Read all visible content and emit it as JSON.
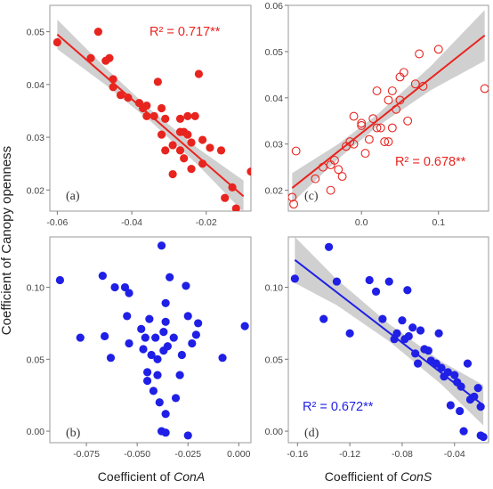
{
  "figure": {
    "ylabel": "Coefficient of Canopy openness",
    "xlabel_left_prefix": "Coefficient of ",
    "xlabel_left_italic": "ConA",
    "xlabel_right_prefix": "Coefficient of ",
    "xlabel_right_italic": "ConS"
  },
  "colors": {
    "red": "#e8241f",
    "blue": "#1f1fe6",
    "band": "#c8c8c8"
  },
  "chart_data": [
    {
      "id": "a",
      "type": "scatter",
      "panel_label": "(a)",
      "annotation": "R² = 0.717**",
      "marker": "filled",
      "color": "red",
      "xlim": [
        -0.062,
        -0.008
      ],
      "ylim": [
        0.016,
        0.055
      ],
      "xticks": [
        -0.06,
        -0.04,
        -0.02
      ],
      "xtick_labels": [
        "-0.06",
        "-0.04",
        "-0.02"
      ],
      "yticks": [
        0.02,
        0.03,
        0.04,
        0.05
      ],
      "ytick_labels": [
        "0.02",
        "0.03",
        "0.04",
        "0.05"
      ],
      "fit": {
        "x": [
          -0.06,
          -0.01
        ],
        "y": [
          0.0495,
          0.0188
        ]
      },
      "band": {
        "x": [
          -0.06,
          -0.047,
          -0.035,
          -0.022,
          -0.01
        ],
        "half_width": [
          0.0028,
          0.0016,
          0.0011,
          0.0016,
          0.003
        ]
      },
      "points": [
        [
          -0.06,
          0.048
        ],
        [
          -0.049,
          0.05
        ],
        [
          -0.051,
          0.045
        ],
        [
          -0.046,
          0.045
        ],
        [
          -0.047,
          0.0445
        ],
        [
          -0.045,
          0.041
        ],
        [
          -0.045,
          0.0395
        ],
        [
          -0.043,
          0.038
        ],
        [
          -0.041,
          0.0375
        ],
        [
          -0.038,
          0.0365
        ],
        [
          -0.037,
          0.0355
        ],
        [
          -0.036,
          0.034
        ],
        [
          -0.036,
          0.036
        ],
        [
          -0.034,
          0.034
        ],
        [
          -0.033,
          0.0405
        ],
        [
          -0.032,
          0.0355
        ],
        [
          -0.032,
          0.0305
        ],
        [
          -0.031,
          0.0275
        ],
        [
          -0.031,
          0.0335
        ],
        [
          -0.029,
          0.023
        ],
        [
          -0.029,
          0.0285
        ],
        [
          -0.027,
          0.031
        ],
        [
          -0.027,
          0.0275
        ],
        [
          -0.027,
          0.0335
        ],
        [
          -0.026,
          0.026
        ],
        [
          -0.026,
          0.031
        ],
        [
          -0.025,
          0.0305
        ],
        [
          -0.025,
          0.034
        ],
        [
          -0.024,
          0.024
        ],
        [
          -0.024,
          0.029
        ],
        [
          -0.023,
          0.034
        ],
        [
          -0.022,
          0.042
        ],
        [
          -0.021,
          0.0295
        ],
        [
          -0.021,
          0.025
        ],
        [
          -0.019,
          0.028
        ],
        [
          -0.016,
          0.0275
        ],
        [
          -0.015,
          0.0185
        ],
        [
          -0.013,
          0.0205
        ],
        [
          -0.012,
          0.0165
        ],
        [
          -0.008,
          0.0235
        ]
      ]
    },
    {
      "id": "c",
      "type": "scatter",
      "panel_label": "(c)",
      "annotation": "R² = 0.678**",
      "marker": "open",
      "color": "red",
      "xlim": [
        -0.095,
        0.165
      ],
      "ylim": [
        0.0155,
        0.06
      ],
      "xticks": [
        0.0,
        0.1
      ],
      "xtick_labels": [
        "0.0",
        "0.1"
      ],
      "yticks": [
        0.02,
        0.03,
        0.04,
        0.05,
        0.06
      ],
      "ytick_labels": [
        "0.02",
        "0.03",
        "0.04",
        "0.05",
        "0.06"
      ],
      "fit": {
        "x": [
          -0.09,
          0.16
        ],
        "y": [
          0.0205,
          0.0535
        ]
      },
      "band": {
        "x": [
          -0.09,
          -0.03,
          0.02,
          0.09,
          0.16
        ],
        "half_width": [
          0.0032,
          0.0016,
          0.0013,
          0.0026,
          0.0055
        ]
      },
      "points": [
        [
          -0.09,
          0.0185
        ],
        [
          -0.088,
          0.017
        ],
        [
          -0.085,
          0.0285
        ],
        [
          -0.06,
          0.0225
        ],
        [
          -0.05,
          0.025
        ],
        [
          -0.04,
          0.0255
        ],
        [
          -0.04,
          0.02
        ],
        [
          -0.035,
          0.0265
        ],
        [
          -0.03,
          0.0245
        ],
        [
          -0.025,
          0.023
        ],
        [
          -0.02,
          0.0295
        ],
        [
          -0.015,
          0.0305
        ],
        [
          -0.01,
          0.03
        ],
        [
          -0.01,
          0.036
        ],
        [
          0.0,
          0.034
        ],
        [
          0.0,
          0.0345
        ],
        [
          0.005,
          0.028
        ],
        [
          0.01,
          0.031
        ],
        [
          0.015,
          0.0355
        ],
        [
          0.02,
          0.0335
        ],
        [
          0.02,
          0.0415
        ],
        [
          0.025,
          0.0335
        ],
        [
          0.03,
          0.0305
        ],
        [
          0.035,
          0.0305
        ],
        [
          0.035,
          0.0395
        ],
        [
          0.04,
          0.0415
        ],
        [
          0.04,
          0.0335
        ],
        [
          0.045,
          0.0375
        ],
        [
          0.05,
          0.0395
        ],
        [
          0.05,
          0.0445
        ],
        [
          0.055,
          0.0455
        ],
        [
          0.06,
          0.035
        ],
        [
          0.07,
          0.043
        ],
        [
          0.075,
          0.0495
        ],
        [
          0.08,
          0.0425
        ],
        [
          0.1,
          0.0505
        ],
        [
          0.16,
          0.042
        ]
      ]
    },
    {
      "id": "b",
      "type": "scatter",
      "panel_label": "(b)",
      "annotation": "",
      "marker": "filled",
      "color": "blue",
      "xlim": [
        -0.093,
        0.006
      ],
      "ylim": [
        -0.008,
        0.135
      ],
      "xticks": [
        -0.075,
        -0.05,
        -0.025,
        0.0
      ],
      "xtick_labels": [
        "-0.075",
        "-0.050",
        "-0.025",
        "0.000"
      ],
      "yticks": [
        0.0,
        0.05,
        0.1
      ],
      "ytick_labels": [
        "0.00",
        "0.05",
        "0.10"
      ],
      "fit": null,
      "band": null,
      "points": [
        [
          -0.088,
          0.105
        ],
        [
          -0.078,
          0.065
        ],
        [
          -0.067,
          0.108
        ],
        [
          -0.066,
          0.066
        ],
        [
          -0.063,
          0.051
        ],
        [
          -0.061,
          0.1
        ],
        [
          -0.056,
          0.1
        ],
        [
          -0.055,
          0.08
        ],
        [
          -0.054,
          0.096
        ],
        [
          -0.054,
          0.061
        ],
        [
          -0.048,
          0.071
        ],
        [
          -0.047,
          0.057
        ],
        [
          -0.046,
          0.065
        ],
        [
          -0.045,
          0.041
        ],
        [
          -0.045,
          0.035
        ],
        [
          -0.044,
          0.078
        ],
        [
          -0.043,
          0.053
        ],
        [
          -0.042,
          0.028
        ],
        [
          -0.041,
          0.065
        ],
        [
          -0.04,
          0.05
        ],
        [
          -0.04,
          0.039
        ],
        [
          -0.039,
          0.02
        ],
        [
          -0.038,
          0.129
        ],
        [
          -0.038,
          0.0
        ],
        [
          -0.037,
          0.056
        ],
        [
          -0.037,
          0.069
        ],
        [
          -0.036,
          0.012
        ],
        [
          -0.036,
          0.076
        ],
        [
          -0.036,
          0.089
        ],
        [
          -0.036,
          -0.001
        ],
        [
          -0.035,
          0.059
        ],
        [
          -0.034,
          0.107
        ],
        [
          -0.032,
          0.065
        ],
        [
          -0.031,
          0.023
        ],
        [
          -0.029,
          0.039
        ],
        [
          -0.028,
          0.053
        ],
        [
          -0.026,
          0.101
        ],
        [
          -0.025,
          0.08
        ],
        [
          -0.025,
          -0.003
        ],
        [
          -0.023,
          0.061
        ],
        [
          -0.021,
          0.067
        ],
        [
          -0.02,
          0.075
        ],
        [
          -0.008,
          0.051
        ],
        [
          0.003,
          0.073
        ]
      ]
    },
    {
      "id": "d",
      "type": "scatter",
      "panel_label": "(d)",
      "annotation": "R² = 0.672**",
      "marker": "filled",
      "color": "blue",
      "xlim": [
        -0.167,
        -0.014
      ],
      "ylim": [
        -0.008,
        0.135
      ],
      "xticks": [
        -0.16,
        -0.12,
        -0.08,
        -0.04
      ],
      "xtick_labels": [
        "-0.16",
        "-0.12",
        "-0.08",
        "-0.04"
      ],
      "yticks": [
        0.0,
        0.05,
        0.1
      ],
      "ytick_labels": [
        "0.00",
        "0.05",
        "0.10"
      ],
      "fit": {
        "x": [
          -0.162,
          -0.018
        ],
        "y": [
          0.119,
          0.018
        ]
      },
      "band": {
        "x": [
          -0.162,
          -0.13,
          -0.09,
          -0.05,
          -0.018
        ],
        "half_width": [
          0.016,
          0.009,
          0.006,
          0.008,
          0.014
        ]
      },
      "points": [
        [
          -0.162,
          0.106
        ],
        [
          -0.14,
          0.078
        ],
        [
          -0.136,
          0.128
        ],
        [
          -0.13,
          0.104
        ],
        [
          -0.12,
          0.068
        ],
        [
          -0.105,
          0.105
        ],
        [
          -0.1,
          0.097
        ],
        [
          -0.095,
          0.078
        ],
        [
          -0.09,
          0.104
        ],
        [
          -0.086,
          0.064
        ],
        [
          -0.084,
          0.068
        ],
        [
          -0.08,
          0.077
        ],
        [
          -0.078,
          0.064
        ],
        [
          -0.076,
          0.098
        ],
        [
          -0.075,
          0.066
        ],
        [
          -0.072,
          0.072
        ],
        [
          -0.07,
          0.054
        ],
        [
          -0.068,
          0.047
        ],
        [
          -0.066,
          0.07
        ],
        [
          -0.063,
          0.057
        ],
        [
          -0.06,
          0.056
        ],
        [
          -0.058,
          0.049
        ],
        [
          -0.054,
          0.047
        ],
        [
          -0.052,
          0.068
        ],
        [
          -0.05,
          0.044
        ],
        [
          -0.048,
          0.038
        ],
        [
          -0.045,
          0.041
        ],
        [
          -0.043,
          0.018
        ],
        [
          -0.04,
          0.039
        ],
        [
          -0.038,
          0.034
        ],
        [
          -0.036,
          0.014
        ],
        [
          -0.035,
          0.031
        ],
        [
          -0.033,
          0.0
        ],
        [
          -0.03,
          0.047
        ],
        [
          -0.028,
          0.022
        ],
        [
          -0.025,
          0.024
        ],
        [
          -0.022,
          0.03
        ],
        [
          -0.02,
          0.017
        ],
        [
          -0.02,
          -0.003
        ],
        [
          -0.018,
          -0.004
        ]
      ]
    }
  ]
}
